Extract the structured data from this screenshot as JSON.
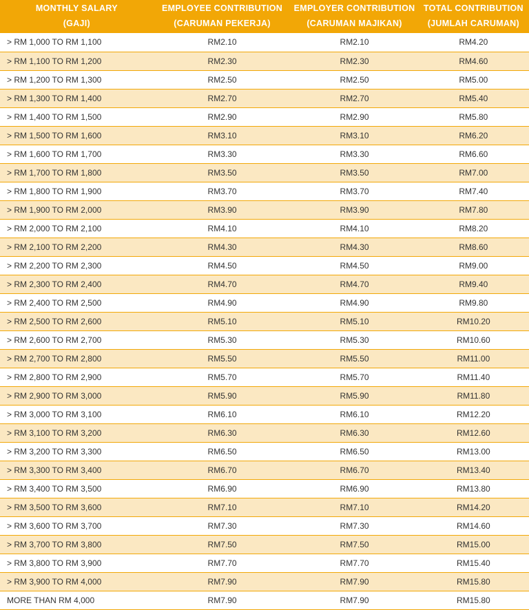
{
  "table": {
    "type": "table",
    "header_bg": "#f2a706",
    "header_color": "#ffffff",
    "row_odd_bg": "#ffffff",
    "row_even_bg": "#fbe8c2",
    "border_color": "#f2a706",
    "text_color": "#333333",
    "header_fontsize": 12.5,
    "body_fontsize": 12,
    "columns": [
      {
        "line1": "MONTHLY SALARY",
        "line2": "(GAJI)",
        "align": "left",
        "width": "29%"
      },
      {
        "line1": "EMPLOYEE CONTRIBUTION",
        "line2": "(CARUMAN PEKERJA)",
        "align": "center",
        "width": "26%"
      },
      {
        "line1": "EMPLOYER CONTRIBUTION",
        "line2": "(CARUMAN MAJIKAN)",
        "align": "center",
        "width": "24%"
      },
      {
        "line1": "TOTAL CONTRIBUTION",
        "line2": "(JUMLAH CARUMAN)",
        "align": "center",
        "width": "21%"
      }
    ],
    "rows": [
      [
        "> RM 1,000 TO RM 1,100",
        "RM2.10",
        "RM2.10",
        "RM4.20"
      ],
      [
        "> RM 1,100 TO RM 1,200",
        "RM2.30",
        "RM2.30",
        "RM4.60"
      ],
      [
        "> RM 1,200 TO RM 1,300",
        "RM2.50",
        "RM2.50",
        "RM5.00"
      ],
      [
        "> RM 1,300 TO RM 1,400",
        "RM2.70",
        "RM2.70",
        "RM5.40"
      ],
      [
        "> RM 1,400 TO RM 1,500",
        "RM2.90",
        "RM2.90",
        "RM5.80"
      ],
      [
        "> RM 1,500 TO RM 1,600",
        "RM3.10",
        "RM3.10",
        "RM6.20"
      ],
      [
        "> RM 1,600 TO RM 1,700",
        "RM3.30",
        "RM3.30",
        "RM6.60"
      ],
      [
        "> RM 1,700 TO RM 1,800",
        "RM3.50",
        "RM3.50",
        "RM7.00"
      ],
      [
        "> RM 1,800 TO RM 1,900",
        "RM3.70",
        "RM3.70",
        "RM7.40"
      ],
      [
        "> RM 1,900 TO RM 2,000",
        "RM3.90",
        "RM3.90",
        "RM7.80"
      ],
      [
        "> RM 2,000 TO RM 2,100",
        "RM4.10",
        "RM4.10",
        "RM8.20"
      ],
      [
        "> RM 2,100 TO RM 2,200",
        "RM4.30",
        "RM4.30",
        "RM8.60"
      ],
      [
        "> RM 2,200 TO RM 2,300",
        "RM4.50",
        "RM4.50",
        "RM9.00"
      ],
      [
        "> RM 2,300 TO RM 2,400",
        "RM4.70",
        "RM4.70",
        "RM9.40"
      ],
      [
        "> RM 2,400 TO RM 2,500",
        "RM4.90",
        "RM4.90",
        "RM9.80"
      ],
      [
        "> RM 2,500 TO RM 2,600",
        "RM5.10",
        "RM5.10",
        "RM10.20"
      ],
      [
        "> RM 2,600 TO RM 2,700",
        "RM5.30",
        "RM5.30",
        "RM10.60"
      ],
      [
        "> RM 2,700 TO RM 2,800",
        "RM5.50",
        "RM5.50",
        "RM11.00"
      ],
      [
        "> RM 2,800 TO RM 2,900",
        "RM5.70",
        "RM5.70",
        "RM11.40"
      ],
      [
        "> RM 2,900 TO RM 3,000",
        "RM5.90",
        "RM5.90",
        "RM11.80"
      ],
      [
        "> RM 3,000 TO RM 3,100",
        "RM6.10",
        "RM6.10",
        "RM12.20"
      ],
      [
        "> RM 3,100 TO RM 3,200",
        "RM6.30",
        "RM6.30",
        "RM12.60"
      ],
      [
        "> RM 3,200 TO RM 3,300",
        "RM6.50",
        "RM6.50",
        "RM13.00"
      ],
      [
        "> RM 3,300 TO RM 3,400",
        "RM6.70",
        "RM6.70",
        "RM13.40"
      ],
      [
        "> RM 3,400 TO RM 3,500",
        "RM6.90",
        "RM6.90",
        "RM13.80"
      ],
      [
        "> RM 3,500 TO RM 3,600",
        "RM7.10",
        "RM7.10",
        "RM14.20"
      ],
      [
        "> RM 3,600 TO RM 3,700",
        "RM7.30",
        "RM7.30",
        "RM14.60"
      ],
      [
        "> RM 3,700 TO RM 3,800",
        "RM7.50",
        "RM7.50",
        "RM15.00"
      ],
      [
        "> RM 3,800 TO RM 3,900",
        "RM7.70",
        "RM7.70",
        "RM15.40"
      ],
      [
        "> RM 3,900 TO RM 4,000",
        "RM7.90",
        "RM7.90",
        "RM15.80"
      ],
      [
        "MORE THAN RM 4,000",
        "RM7.90",
        "RM7.90",
        "RM15.80"
      ]
    ]
  }
}
